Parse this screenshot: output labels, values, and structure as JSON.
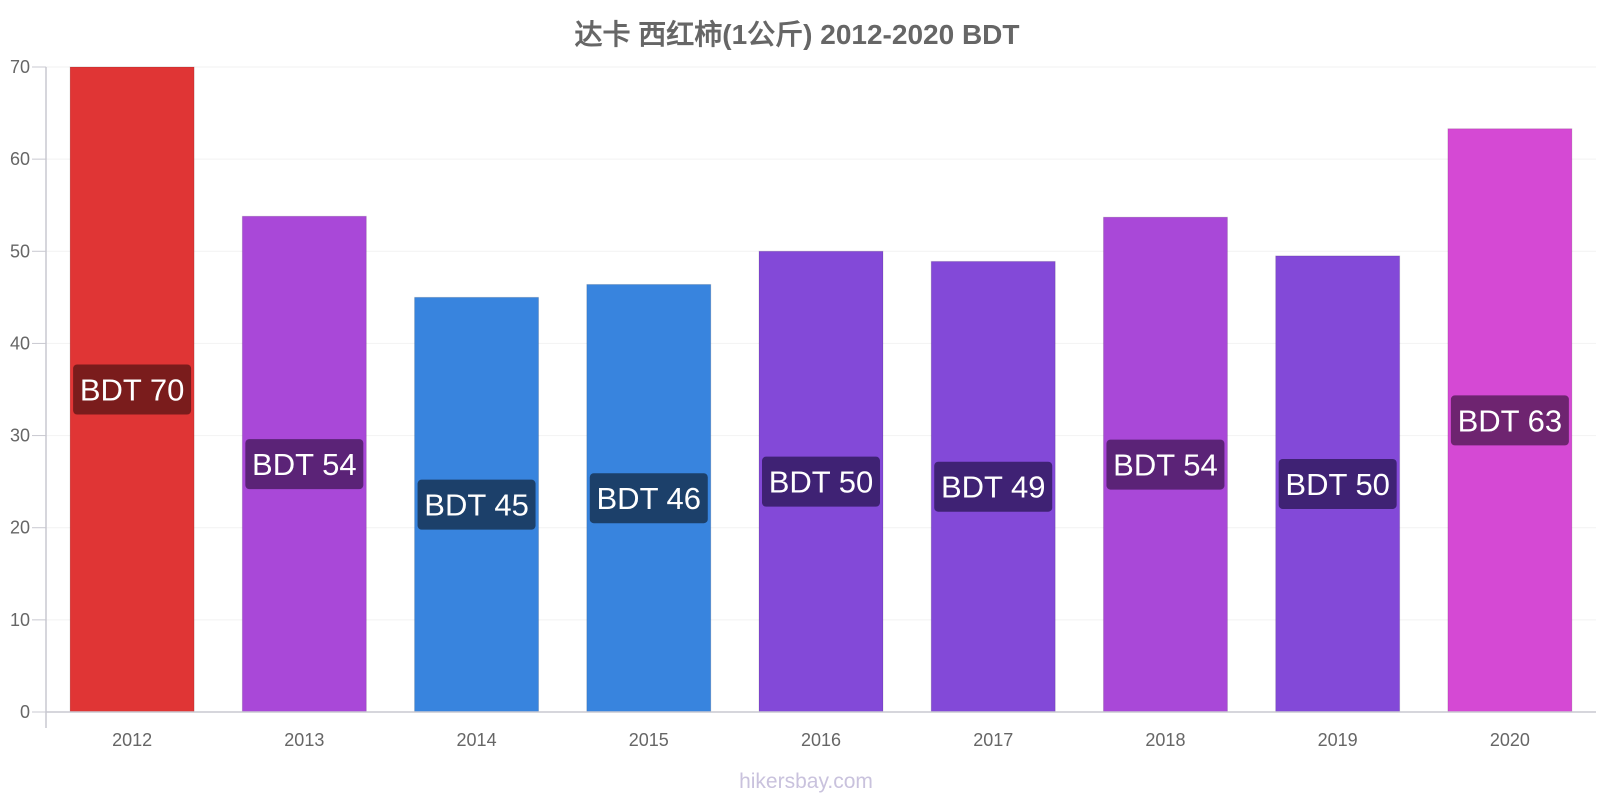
{
  "chart_data": {
    "type": "bar",
    "title": "达卡 西红柿(1公斤) 2012-2020 BDT",
    "xlabel": "",
    "ylabel": "",
    "ylim": [
      0,
      70
    ],
    "yticks": [
      0,
      10,
      20,
      30,
      40,
      50,
      60,
      70
    ],
    "grid": true,
    "categories": [
      "2012",
      "2013",
      "2014",
      "2015",
      "2016",
      "2017",
      "2018",
      "2019",
      "2020"
    ],
    "values": [
      70,
      53.8,
      45,
      46.4,
      50,
      48.9,
      53.7,
      49.5,
      63.3
    ],
    "data_labels": [
      "BDT 70",
      "BDT 54",
      "BDT 45",
      "BDT 46",
      "BDT 50",
      "BDT 49",
      "BDT 54",
      "BDT 50",
      "BDT 63"
    ],
    "bar_colors": [
      "#e03535",
      "#a948d8",
      "#3884de",
      "#3884de",
      "#8349d8",
      "#8349d8",
      "#a948d8",
      "#8349d8",
      "#d549d4"
    ],
    "label_bg_colors": [
      "#7a1c1c",
      "#5b2377",
      "#1c406a",
      "#1c406a",
      "#3f2274",
      "#3f2274",
      "#5b2377",
      "#3f2274",
      "#6e2470"
    ]
  },
  "watermark": "hikersbay.com"
}
